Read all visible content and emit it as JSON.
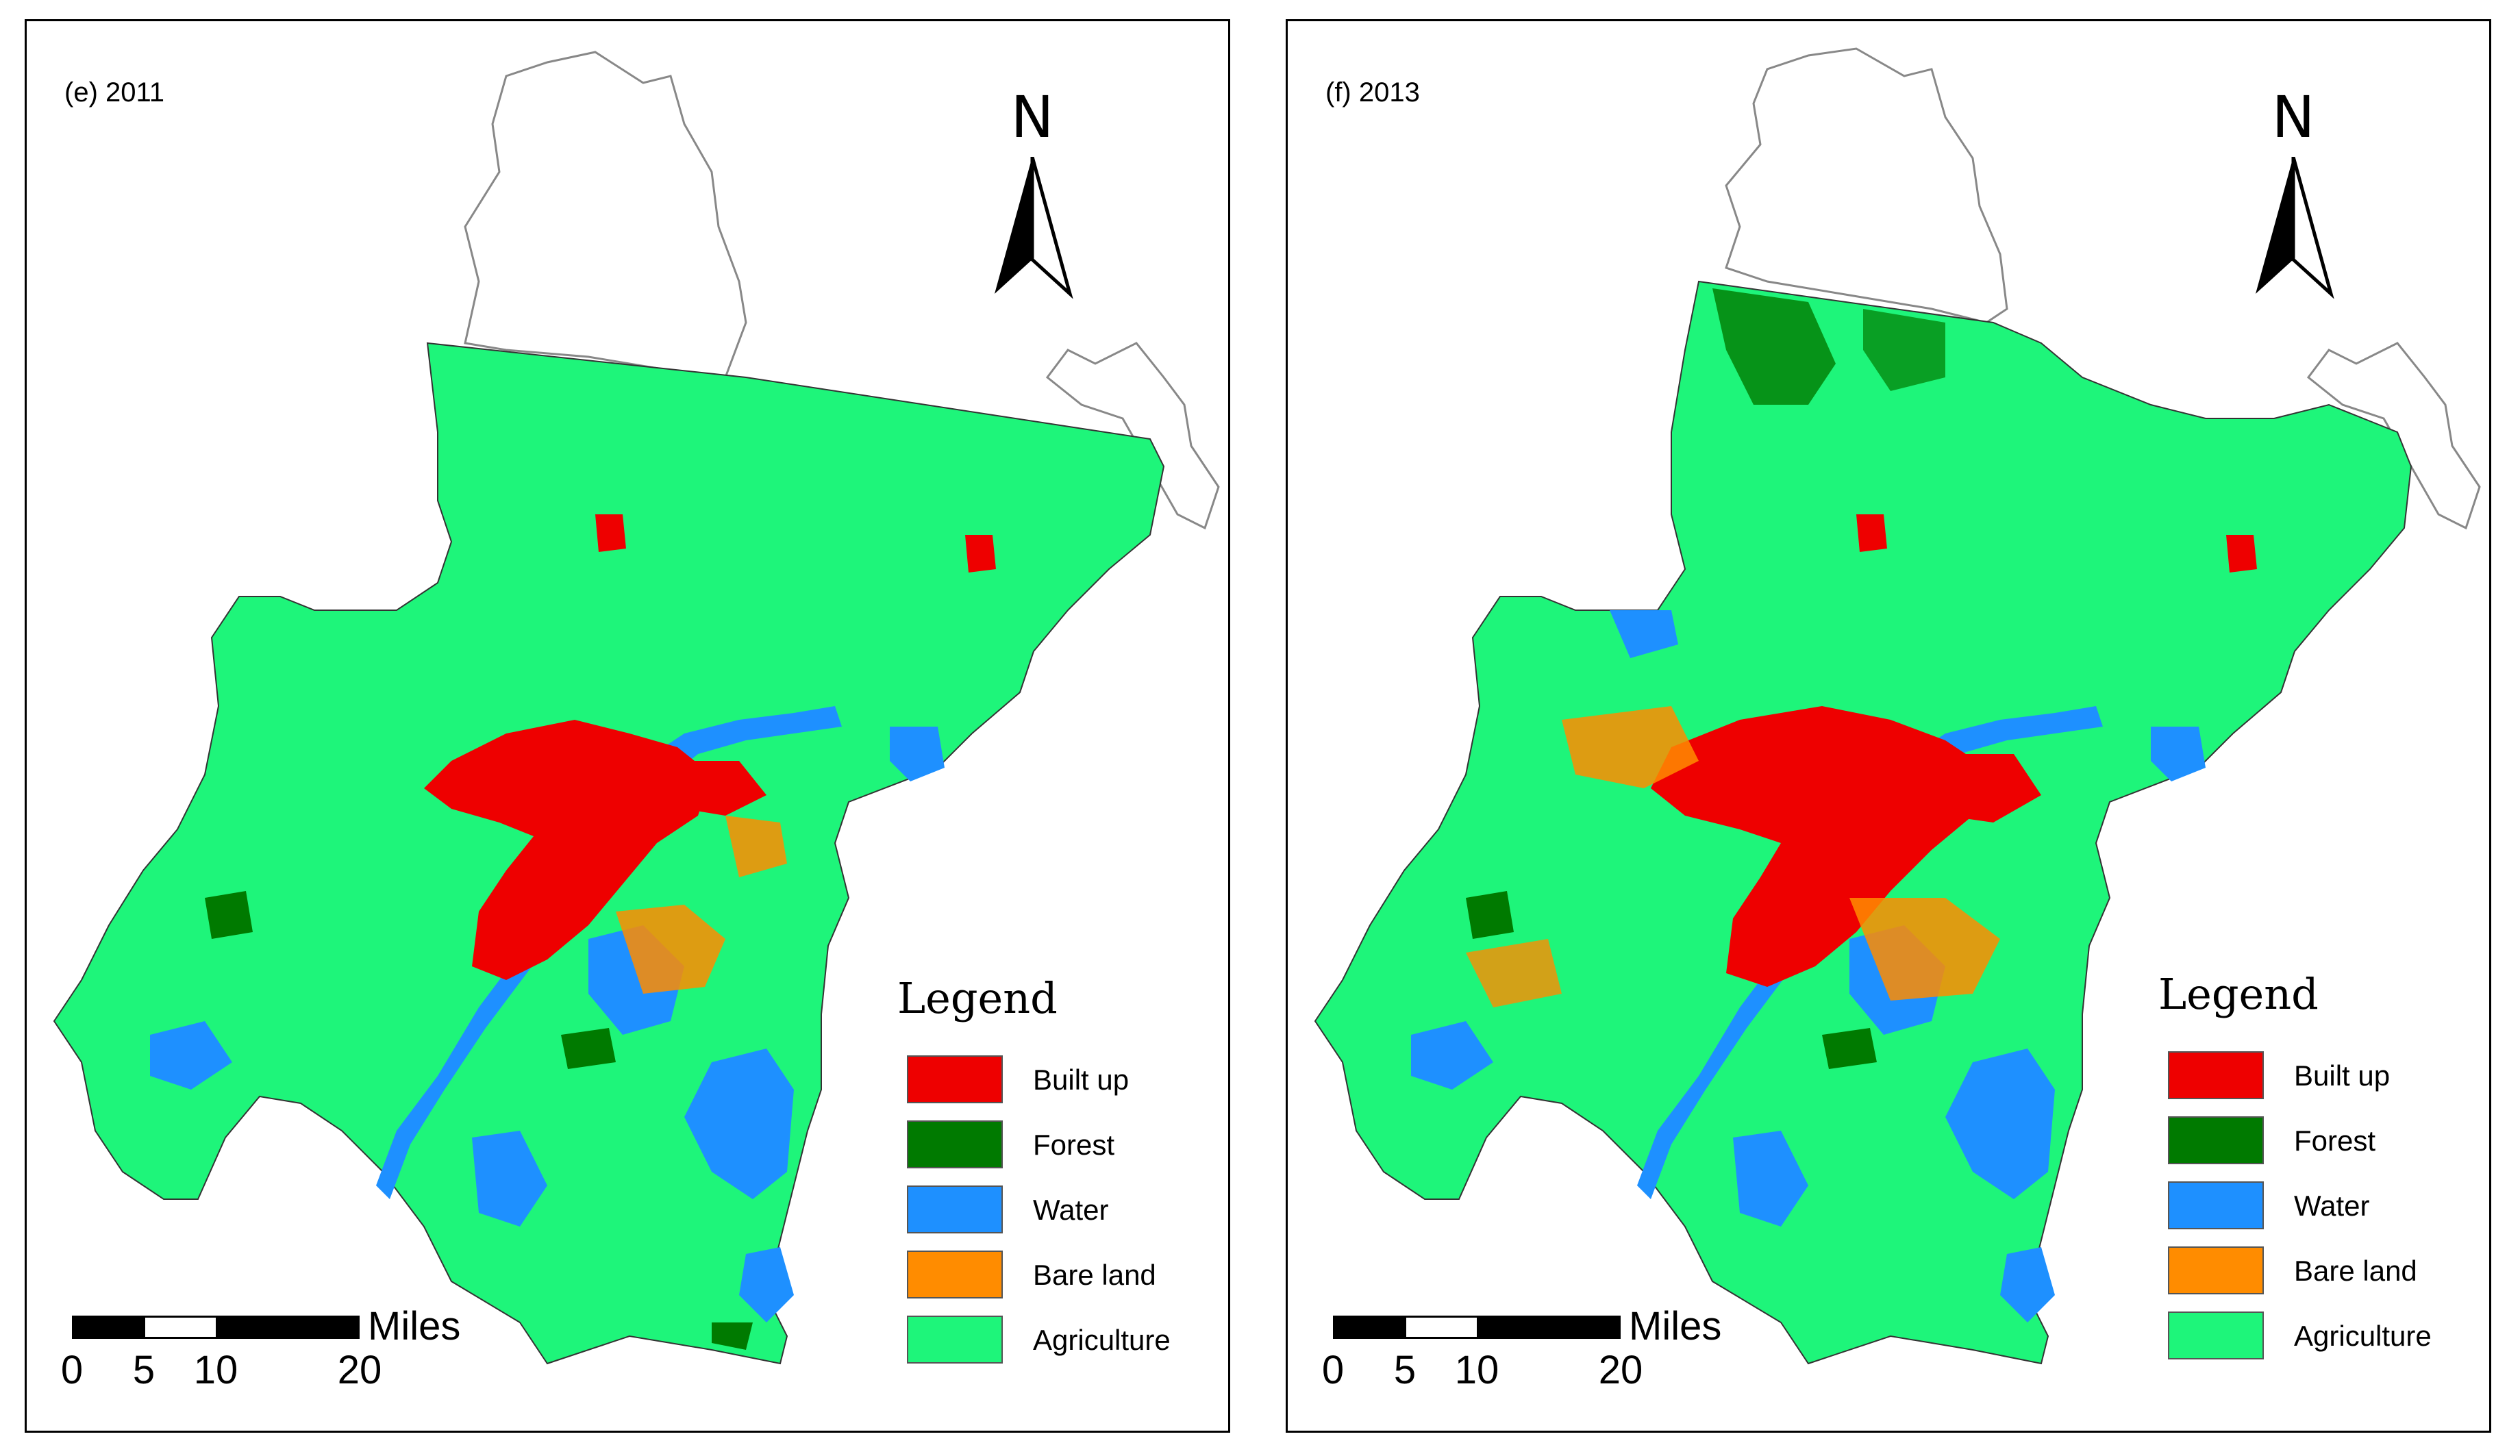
{
  "panels": [
    {
      "title": "(e) 2011",
      "north_label": "N",
      "scale": {
        "unit": "Miles",
        "ticks": [
          "0",
          "5",
          "10",
          "20"
        ]
      },
      "legend": {
        "title": "Legend",
        "items": [
          {
            "label": "Built up",
            "color": "#ee0000"
          },
          {
            "label": "Forest",
            "color": "#007a00"
          },
          {
            "label": "Water",
            "color": "#1e90ff"
          },
          {
            "label": "Bare land",
            "color": "#ff8c00"
          },
          {
            "label": "Agriculture",
            "color": "#1ef57a"
          }
        ]
      }
    },
    {
      "title": "(f) 2013",
      "north_label": "N",
      "scale": {
        "unit": "Miles",
        "ticks": [
          "0",
          "5",
          "10",
          "20"
        ]
      },
      "legend": {
        "title": "Legend",
        "items": [
          {
            "label": "Built up",
            "color": "#ee0000"
          },
          {
            "label": "Forest",
            "color": "#007a00"
          },
          {
            "label": "Water",
            "color": "#1e90ff"
          },
          {
            "label": "Bare land",
            "color": "#ff8c00"
          },
          {
            "label": "Agriculture",
            "color": "#1ef57a"
          }
        ]
      }
    }
  ]
}
